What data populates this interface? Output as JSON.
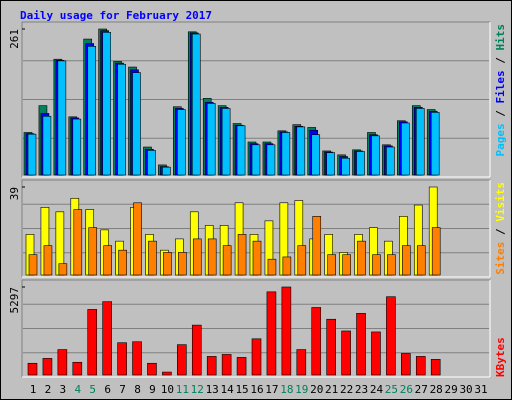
{
  "chart_data": [
    {
      "type": "bar",
      "title": "Daily usage for February 2017",
      "legend_position": "top",
      "legend_separator": " / ",
      "ylim": [
        0,
        261
      ],
      "yticks": [
        261
      ],
      "series": [
        {
          "name": "Hits",
          "color": "#00805c",
          "values": [
            76,
            124,
            207,
            104,
            243,
            261,
            203,
            193,
            50,
            18,
            122,
            256,
            137,
            124,
            92,
            59,
            59,
            79,
            90,
            85,
            43,
            36,
            45,
            76,
            54,
            97,
            124,
            117,
            null,
            null,
            null
          ]
        },
        {
          "name": "Files",
          "color": "#0000ff",
          "values": [
            74,
            110,
            205,
            102,
            235,
            258,
            200,
            188,
            46,
            15,
            119,
            254,
            130,
            121,
            89,
            56,
            56,
            77,
            87,
            80,
            41,
            33,
            43,
            72,
            52,
            95,
            121,
            114,
            null,
            null,
            null
          ]
        },
        {
          "name": "Pages",
          "color": "#00c0ff",
          "values": [
            73,
            105,
            204,
            100,
            230,
            255,
            198,
            183,
            44,
            14,
            117,
            252,
            128,
            119,
            88,
            54,
            54,
            76,
            86,
            72,
            40,
            30,
            42,
            70,
            50,
            93,
            119,
            112,
            null,
            null,
            null
          ]
        }
      ]
    },
    {
      "type": "bar",
      "legend_position": "top",
      "legend_separator": " / ",
      "ylim": [
        0,
        39
      ],
      "yticks": [
        39
      ],
      "series": [
        {
          "name": "Visits",
          "color": "#ffff00",
          "values": [
            18,
            30,
            28,
            34,
            29,
            20,
            15,
            30,
            18,
            11,
            16,
            28,
            22,
            22,
            32,
            18,
            24,
            32,
            33,
            16,
            18,
            10,
            18,
            21,
            15,
            26,
            31,
            39,
            null,
            null,
            null
          ]
        },
        {
          "name": "Sites",
          "color": "#ff8000",
          "values": [
            9,
            13,
            5,
            29,
            21,
            13,
            11,
            32,
            15,
            10,
            10,
            16,
            16,
            13,
            18,
            15,
            7,
            8,
            13,
            26,
            9,
            9,
            15,
            9,
            9,
            13,
            13,
            21,
            null,
            null,
            null
          ]
        }
      ]
    },
    {
      "type": "bar",
      "legend_position": "bottom",
      "legend_separator": " / ",
      "ylim": [
        0,
        5297
      ],
      "yticks": [
        5297
      ],
      "categories": [
        "1",
        "2",
        "3",
        "4",
        "5",
        "6",
        "7",
        "8",
        "9",
        "10",
        "11",
        "12",
        "13",
        "14",
        "15",
        "16",
        "17",
        "18",
        "19",
        "20",
        "21",
        "22",
        "23",
        "24",
        "25",
        "26",
        "27",
        "28",
        "29",
        "30",
        "31"
      ],
      "category_colors": [
        "#000000",
        "#000000",
        "#000000",
        "#00805c",
        "#00805c",
        "#000000",
        "#000000",
        "#000000",
        "#000000",
        "#000000",
        "#00805c",
        "#00805c",
        "#000000",
        "#000000",
        "#000000",
        "#000000",
        "#000000",
        "#00805c",
        "#00805c",
        "#000000",
        "#000000",
        "#000000",
        "#000000",
        "#000000",
        "#00805c",
        "#00805c",
        "#000000",
        "#000000",
        "#000000",
        "#000000",
        "#000000"
      ],
      "series": [
        {
          "name": "KBytes",
          "color": "#ff0000",
          "values": [
            707,
            1001,
            1531,
            766,
            3946,
            4414,
            1943,
            2002,
            707,
            177,
            1826,
            3003,
            1119,
            1237,
            1060,
            2179,
            5006,
            5297,
            1531,
            4064,
            3357,
            2650,
            3710,
            2591,
            4712,
            1296,
            1119,
            942,
            null,
            null,
            null
          ]
        }
      ]
    }
  ]
}
